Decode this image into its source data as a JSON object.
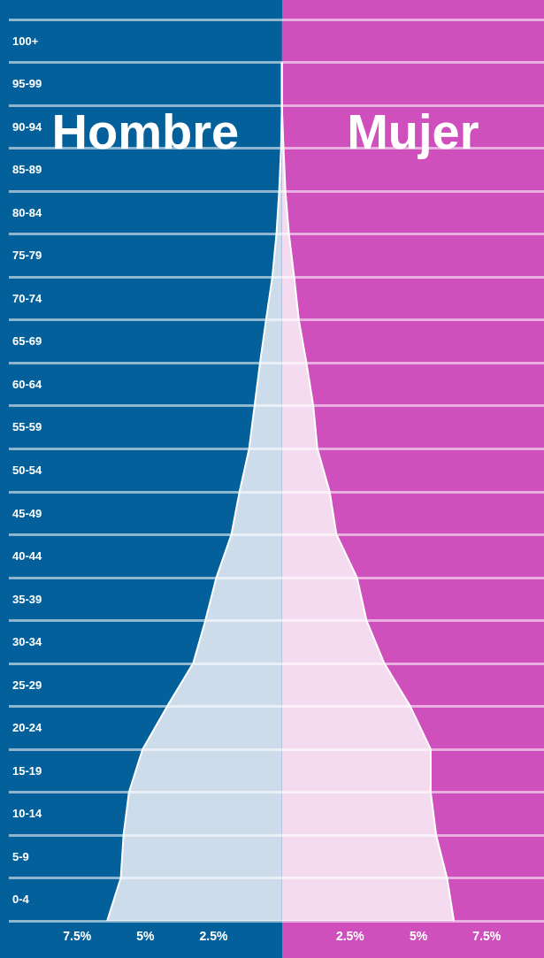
{
  "chart_data": {
    "type": "area",
    "orientation": "horizontal",
    "categories": [
      "100+",
      "95-99",
      "90-94",
      "85-89",
      "80-84",
      "75-79",
      "70-74",
      "65-69",
      "60-64",
      "55-59",
      "50-54",
      "45-49",
      "40-44",
      "35-39",
      "30-34",
      "25-29",
      "20-24",
      "15-19",
      "10-14",
      "5-9",
      "0-4"
    ],
    "series": [
      {
        "color": "#cddcea",
        "values": [
          0,
          0,
          -0.03,
          -0.1,
          -0.2,
          -0.35,
          -0.58,
          -0.8,
          -1.0,
          -1.2,
          -1.55,
          -1.85,
          -2.4,
          -2.8,
          -3.25,
          -4.2,
          -5.1,
          -5.6,
          -5.8,
          -5.9,
          -6.4
        ]
      },
      {
        "color": "#f5dbef",
        "values": [
          0,
          0,
          0.06,
          0.13,
          0.26,
          0.45,
          0.62,
          0.9,
          1.15,
          1.3,
          1.75,
          2.0,
          2.75,
          3.1,
          3.75,
          4.7,
          5.45,
          5.45,
          5.65,
          6.05,
          6.3
        ]
      }
    ],
    "xlim": [
      -10,
      9.6
    ],
    "xticks": [
      {
        "value": -7.5,
        "label": "7.5%"
      },
      {
        "value": -5,
        "label": "5%"
      },
      {
        "value": -2.5,
        "label": "2.5%"
      },
      {
        "value": 2.5,
        "label": "2.5%"
      },
      {
        "value": 5,
        "label": "5%"
      },
      {
        "value": 7.5,
        "label": "7.5%"
      }
    ],
    "bands": [
      {
        "axis": "x",
        "from": -10,
        "to": 0,
        "label": "Hombre",
        "color": "#03609a"
      },
      {
        "axis": "x",
        "from": 0,
        "to": 9.6,
        "label": "Mujer",
        "color": "#cf4fbc"
      }
    ],
    "grid": "y",
    "marker": "none"
  }
}
